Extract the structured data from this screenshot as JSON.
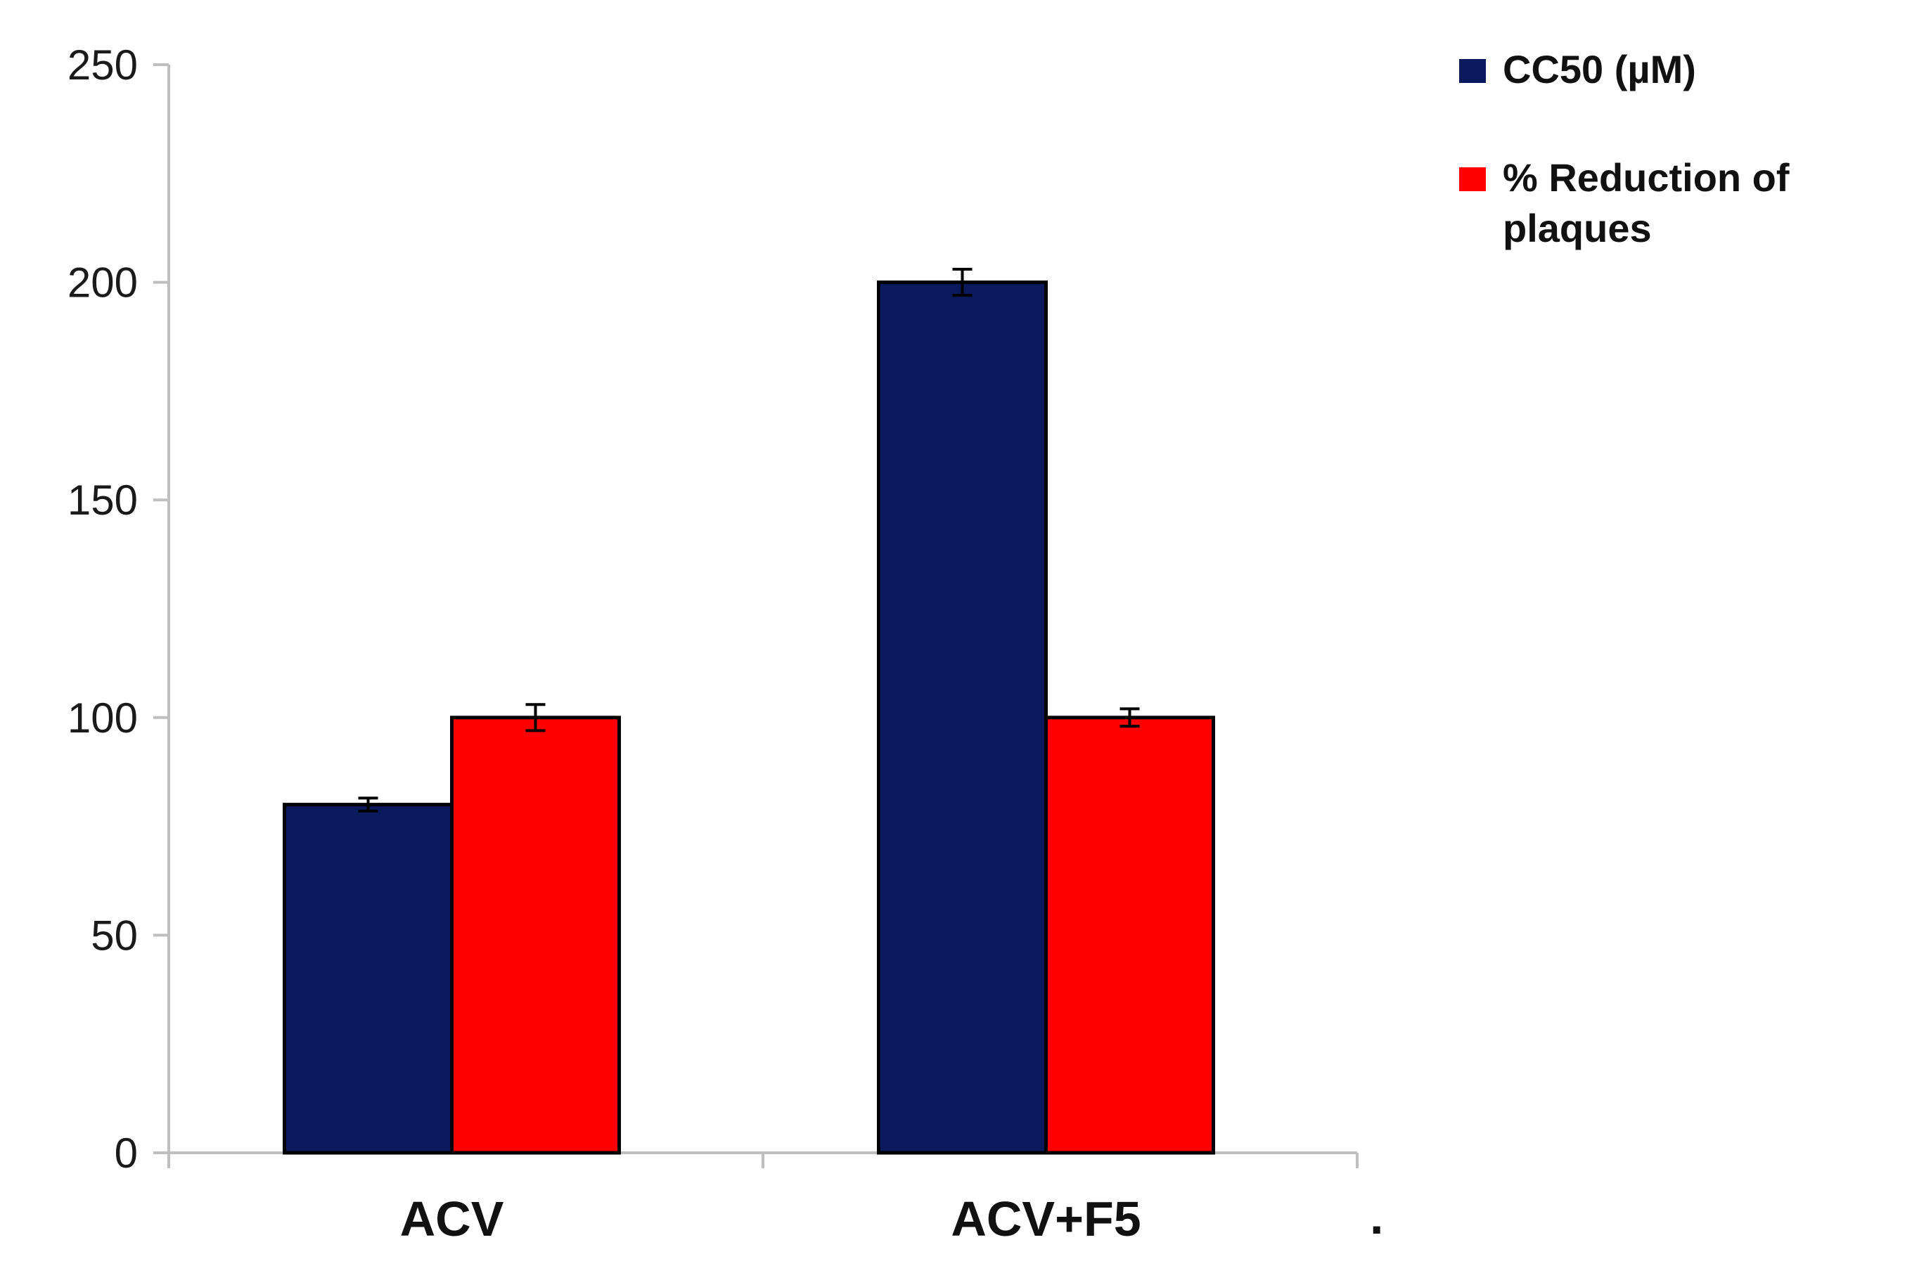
{
  "chart_data": {
    "type": "bar",
    "categories": [
      "ACV",
      "ACV+F5"
    ],
    "series": [
      {
        "name": "CC50 (µM)",
        "color": "#0a1a5c",
        "values": [
          80,
          200
        ],
        "errors": [
          1.5,
          3
        ]
      },
      {
        "name": "% Reduction of plaques",
        "color": "#ff0000",
        "values": [
          100,
          100
        ],
        "errors": [
          3,
          2
        ]
      }
    ],
    "ylim": [
      0,
      250
    ],
    "yticks": [
      0,
      50,
      100,
      150,
      200,
      250
    ],
    "title": "",
    "xlabel": "",
    "ylabel": "",
    "legend_position": "top-right",
    "grid": false,
    "trailing_mark": "."
  }
}
